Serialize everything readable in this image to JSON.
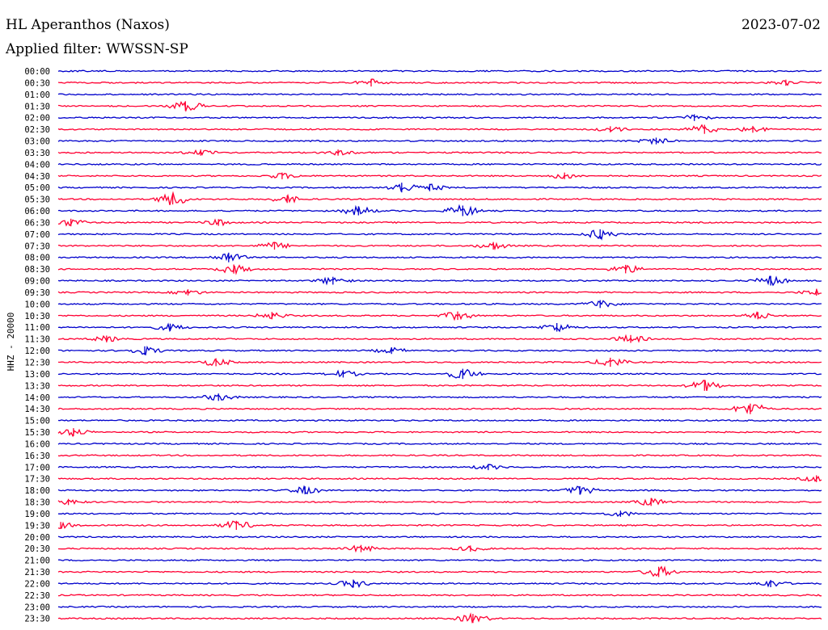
{
  "header": {
    "station": "HL Aperanthos (Naxos)",
    "date": "2023-07-02",
    "filter": "Applied filter: WWSSN-SP"
  },
  "chart_data": {
    "type": "line",
    "title": "HL Aperanthos (Naxos)",
    "subtitle": "Applied filter: WWSSN-SP",
    "ylabel": "HHZ - 20000",
    "xlabel": "",
    "grid": false,
    "colors": {
      "even_rows": "#0000cc",
      "odd_rows": "#ff0033"
    },
    "row_labels": [
      "00:00",
      "00:30",
      "01:00",
      "01:30",
      "02:00",
      "02:30",
      "03:00",
      "03:30",
      "04:00",
      "04:30",
      "05:00",
      "05:30",
      "06:00",
      "06:30",
      "07:00",
      "07:30",
      "08:00",
      "08:30",
      "09:00",
      "09:30",
      "10:00",
      "10:30",
      "11:00",
      "11:30",
      "12:00",
      "12:30",
      "13:00",
      "13:30",
      "14:00",
      "14:30",
      "15:00",
      "15:30",
      "16:00",
      "16:30",
      "17:00",
      "17:30",
      "18:00",
      "18:30",
      "19:00",
      "19:30",
      "20:00",
      "20:30",
      "21:00",
      "21:30",
      "22:00",
      "22:30",
      "23:00",
      "23:30"
    ],
    "time_range_minutes": [
      0,
      30
    ],
    "series": [
      {
        "events": []
      },
      {
        "events": [
          [
            12.3,
            1.5
          ],
          [
            28.6,
            1.0
          ]
        ]
      },
      {
        "events": []
      },
      {
        "events": [
          [
            5.0,
            2.2
          ]
        ]
      },
      {
        "events": [
          [
            25.0,
            1.2
          ]
        ]
      },
      {
        "events": [
          [
            25.4,
            2.0
          ],
          [
            27.3,
            1.2
          ],
          [
            21.7,
            1.0
          ]
        ]
      },
      {
        "events": [
          [
            23.5,
            1.2
          ]
        ]
      },
      {
        "events": [
          [
            5.6,
            1.0
          ],
          [
            11.0,
            1.0
          ]
        ]
      },
      {
        "events": []
      },
      {
        "events": [
          [
            8.8,
            1.2
          ],
          [
            19.9,
            1.2
          ]
        ]
      },
      {
        "events": [
          [
            13.5,
            2.2
          ],
          [
            14.6,
            1.4
          ]
        ]
      },
      {
        "events": [
          [
            4.5,
            3.0
          ],
          [
            9.0,
            1.5
          ]
        ]
      },
      {
        "events": [
          [
            11.8,
            2.0
          ],
          [
            15.9,
            2.6
          ]
        ]
      },
      {
        "events": [
          [
            0.5,
            1.5
          ],
          [
            6.3,
            1.2
          ]
        ]
      },
      {
        "events": [
          [
            21.3,
            2.2
          ]
        ]
      },
      {
        "events": [
          [
            8.5,
            1.5
          ],
          [
            17.1,
            1.5
          ]
        ]
      },
      {
        "events": [
          [
            6.7,
            2.2
          ]
        ]
      },
      {
        "events": [
          [
            6.9,
            2.0
          ],
          [
            22.3,
            1.8
          ]
        ]
      },
      {
        "events": [
          [
            10.8,
            1.6
          ],
          [
            28.0,
            2.2
          ]
        ]
      },
      {
        "events": [
          [
            5.1,
            1.0
          ],
          [
            29.8,
            1.2
          ]
        ]
      },
      {
        "events": [
          [
            21.3,
            1.6
          ]
        ]
      },
      {
        "events": [
          [
            8.4,
            1.4
          ],
          [
            15.7,
            1.8
          ],
          [
            27.5,
            1.4
          ]
        ]
      },
      {
        "events": [
          [
            4.4,
            1.4
          ],
          [
            19.6,
            1.8
          ]
        ]
      },
      {
        "events": [
          [
            1.9,
            1.2
          ],
          [
            22.5,
            1.6
          ]
        ]
      },
      {
        "events": [
          [
            3.4,
            1.8
          ],
          [
            13.1,
            1.2
          ]
        ]
      },
      {
        "events": [
          [
            6.2,
            1.6
          ],
          [
            21.7,
            2.0
          ]
        ]
      },
      {
        "events": [
          [
            11.2,
            1.4
          ],
          [
            15.9,
            2.4
          ]
        ]
      },
      {
        "events": [
          [
            25.4,
            2.6
          ]
        ]
      },
      {
        "events": [
          [
            6.3,
            1.4
          ]
        ]
      },
      {
        "events": [
          [
            27.2,
            2.8
          ]
        ]
      },
      {
        "events": []
      },
      {
        "events": [
          [
            0.6,
            1.6
          ]
        ]
      },
      {
        "events": []
      },
      {
        "events": []
      },
      {
        "events": [
          [
            16.9,
            1.0
          ]
        ]
      },
      {
        "events": [
          [
            29.8,
            1.2
          ]
        ]
      },
      {
        "events": [
          [
            9.7,
            1.6
          ],
          [
            20.5,
            1.8
          ]
        ]
      },
      {
        "events": [
          [
            0.4,
            1.0
          ],
          [
            23.3,
            1.6
          ]
        ]
      },
      {
        "events": [
          [
            22.1,
            1.0
          ]
        ]
      },
      {
        "events": [
          [
            7.0,
            2.0
          ],
          [
            0.1,
            1.2
          ]
        ]
      },
      {
        "events": []
      },
      {
        "events": [
          [
            11.9,
            1.4
          ],
          [
            16.2,
            1.0
          ]
        ]
      },
      {
        "events": []
      },
      {
        "events": [
          [
            23.6,
            2.4
          ]
        ]
      },
      {
        "events": [
          [
            11.6,
            1.6
          ],
          [
            28.0,
            1.4
          ]
        ]
      },
      {
        "events": []
      },
      {
        "events": []
      },
      {
        "events": [
          [
            16.3,
            2.0
          ]
        ]
      }
    ]
  }
}
